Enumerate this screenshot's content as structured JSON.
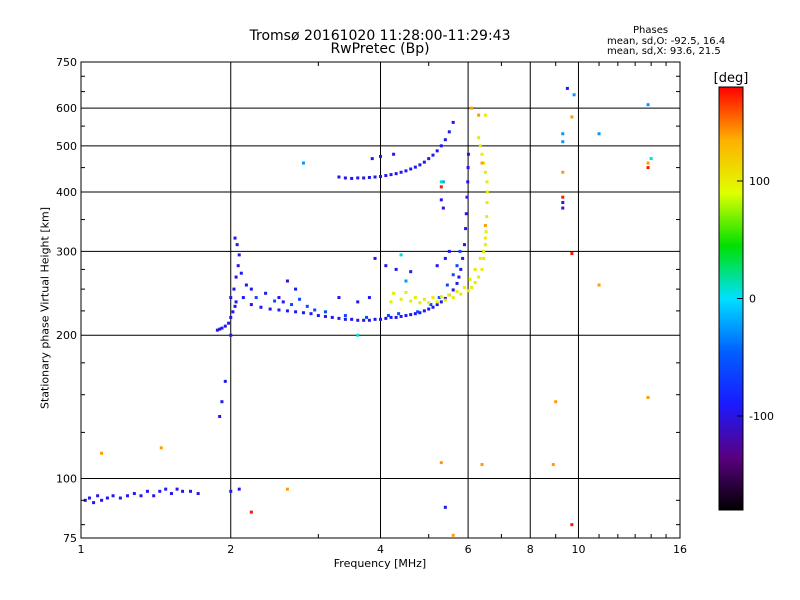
{
  "chart_data": {
    "type": "scatter",
    "title": "Tromsø 20161020 11:28:00-11:29:43",
    "subtitle": "RwPretec (Bp)",
    "xlabel": "Frequency [MHz]",
    "ylabel": "Stationary phase Virtual Height [km]",
    "x_scale": "log",
    "y_scale": "log",
    "xlim": [
      1,
      16
    ],
    "ylim": [
      75,
      750
    ],
    "x_ticks": [
      1,
      2,
      4,
      6,
      8,
      10,
      16
    ],
    "y_ticks": [
      75,
      100,
      200,
      300,
      400,
      500,
      600,
      750
    ],
    "grid": true,
    "phase_stats": {
      "heading": "Phases",
      "line_o": "mean, sd,O: -92.5, 16.4",
      "line_x": "mean, sd,X: 93.6, 21.5"
    },
    "colorbar": {
      "label": "[deg]",
      "min": -180,
      "max": 180,
      "ticks": [
        100,
        0,
        -100
      ],
      "stops": [
        "#000000",
        "#5a0080",
        "#1a1aff",
        "#0060ff",
        "#00e0ff",
        "#00e000",
        "#e0ff00",
        "#ffb000",
        "#ff0000"
      ]
    },
    "series": [
      {
        "phase": -95,
        "points": [
          [
            1.02,
            90
          ],
          [
            1.04,
            91
          ],
          [
            1.06,
            89
          ],
          [
            1.08,
            92
          ],
          [
            1.1,
            90
          ],
          [
            1.13,
            91
          ],
          [
            1.16,
            92
          ],
          [
            1.2,
            91
          ],
          [
            1.24,
            92
          ],
          [
            1.28,
            93
          ],
          [
            1.32,
            92
          ],
          [
            1.36,
            94
          ],
          [
            1.4,
            92
          ],
          [
            1.44,
            94
          ],
          [
            1.48,
            95
          ],
          [
            1.52,
            93
          ],
          [
            1.56,
            95
          ],
          [
            1.6,
            94
          ],
          [
            1.66,
            94
          ],
          [
            1.72,
            93
          ],
          [
            2.0,
            94
          ],
          [
            2.08,
            95
          ],
          [
            1.9,
            135
          ],
          [
            1.92,
            145
          ],
          [
            1.95,
            160
          ],
          [
            1.88,
            205
          ],
          [
            1.9,
            206
          ],
          [
            1.92,
            207
          ],
          [
            1.95,
            209
          ],
          [
            1.98,
            212
          ],
          [
            2.0,
            218
          ],
          [
            2.02,
            224
          ],
          [
            2.04,
            230
          ],
          [
            2.03,
            250
          ],
          [
            2.05,
            265
          ],
          [
            2.07,
            280
          ],
          [
            2.08,
            295
          ],
          [
            2.06,
            310
          ],
          [
            2.04,
            320
          ],
          [
            2.1,
            270
          ],
          [
            2.15,
            255
          ],
          [
            2.0,
            240
          ],
          [
            2.05,
            235
          ],
          [
            2.12,
            240
          ],
          [
            2.0,
            200
          ],
          [
            2.2,
            232
          ],
          [
            2.3,
            229
          ],
          [
            2.4,
            227
          ],
          [
            2.5,
            226
          ],
          [
            2.6,
            225
          ],
          [
            2.7,
            224
          ],
          [
            2.8,
            223
          ],
          [
            2.9,
            222
          ],
          [
            3.0,
            220
          ],
          [
            3.1,
            219
          ],
          [
            3.2,
            218
          ],
          [
            3.3,
            217
          ],
          [
            3.4,
            216
          ],
          [
            3.5,
            216
          ],
          [
            3.6,
            215
          ],
          [
            3.7,
            215
          ],
          [
            3.8,
            215
          ],
          [
            3.9,
            216
          ],
          [
            4.0,
            216
          ],
          [
            4.1,
            217
          ],
          [
            4.2,
            218
          ],
          [
            4.3,
            218
          ],
          [
            4.4,
            219
          ],
          [
            4.5,
            220
          ],
          [
            4.6,
            221
          ],
          [
            4.7,
            222
          ],
          [
            4.8,
            223
          ],
          [
            4.9,
            225
          ],
          [
            5.0,
            227
          ],
          [
            5.1,
            229
          ],
          [
            5.2,
            232
          ],
          [
            5.3,
            235
          ],
          [
            5.4,
            239
          ],
          [
            5.5,
            243
          ],
          [
            5.6,
            249
          ],
          [
            5.7,
            257
          ],
          [
            5.75,
            265
          ],
          [
            5.8,
            275
          ],
          [
            5.85,
            290
          ],
          [
            5.9,
            310
          ],
          [
            5.93,
            335
          ],
          [
            5.95,
            360
          ],
          [
            5.97,
            390
          ],
          [
            5.99,
            420
          ],
          [
            6.0,
            450
          ],
          [
            6.01,
            480
          ],
          [
            2.2,
            250
          ],
          [
            2.35,
            245
          ],
          [
            2.5,
            240
          ],
          [
            2.6,
            260
          ],
          [
            2.7,
            250
          ],
          [
            2.55,
            235
          ],
          [
            3.3,
            430
          ],
          [
            3.4,
            428
          ],
          [
            3.5,
            427
          ],
          [
            3.6,
            428
          ],
          [
            3.7,
            428
          ],
          [
            3.8,
            429
          ],
          [
            3.9,
            430
          ],
          [
            4.0,
            431
          ],
          [
            4.1,
            433
          ],
          [
            4.2,
            435
          ],
          [
            4.3,
            437
          ],
          [
            4.4,
            440
          ],
          [
            4.5,
            443
          ],
          [
            4.6,
            447
          ],
          [
            4.7,
            451
          ],
          [
            4.8,
            456
          ],
          [
            4.9,
            462
          ],
          [
            5.0,
            470
          ],
          [
            5.1,
            478
          ],
          [
            5.2,
            488
          ],
          [
            5.3,
            500
          ],
          [
            5.4,
            515
          ],
          [
            5.5,
            535
          ],
          [
            5.6,
            560
          ],
          [
            3.85,
            470
          ],
          [
            4.0,
            475
          ],
          [
            4.25,
            480
          ],
          [
            3.9,
            290
          ],
          [
            4.1,
            280
          ],
          [
            4.3,
            275
          ],
          [
            4.6,
            272
          ],
          [
            5.2,
            280
          ],
          [
            5.4,
            290
          ],
          [
            5.5,
            300
          ],
          [
            3.3,
            240
          ],
          [
            3.6,
            235
          ],
          [
            3.8,
            240
          ],
          [
            5.3,
            385
          ],
          [
            5.35,
            370
          ],
          [
            9.3,
            380
          ],
          [
            9.3,
            370
          ],
          [
            9.5,
            660
          ],
          [
            5.4,
            87
          ]
        ]
      },
      {
        "phase": -60,
        "points": [
          [
            2.25,
            240
          ],
          [
            2.45,
            236
          ],
          [
            2.65,
            232
          ],
          [
            2.75,
            238
          ],
          [
            2.85,
            230
          ],
          [
            2.95,
            226
          ],
          [
            3.1,
            224
          ],
          [
            3.4,
            220
          ],
          [
            3.75,
            218
          ],
          [
            4.15,
            220
          ],
          [
            4.35,
            222
          ],
          [
            4.75,
            224
          ],
          [
            5.05,
            232
          ],
          [
            5.25,
            240
          ],
          [
            5.45,
            255
          ],
          [
            5.6,
            268
          ],
          [
            5.7,
            280
          ],
          [
            5.78,
            300
          ]
        ]
      },
      {
        "phase": -25,
        "points": [
          [
            2.8,
            460
          ],
          [
            9.3,
            530
          ],
          [
            9.3,
            510
          ],
          [
            9.8,
            640
          ],
          [
            11.0,
            530
          ],
          [
            13.8,
            610
          ],
          [
            5.35,
            420
          ],
          [
            4.5,
            260
          ]
        ]
      },
      {
        "phase": 10,
        "points": [
          [
            4.4,
            295
          ],
          [
            14.0,
            470
          ],
          [
            5.3,
            420
          ],
          [
            3.6,
            200
          ]
        ]
      },
      {
        "phase": 100,
        "points": [
          [
            4.2,
            235
          ],
          [
            4.4,
            238
          ],
          [
            4.6,
            236
          ],
          [
            4.8,
            234
          ],
          [
            5.0,
            234
          ],
          [
            5.2,
            235
          ],
          [
            5.4,
            237
          ],
          [
            5.6,
            240
          ],
          [
            5.8,
            244
          ],
          [
            6.0,
            248
          ],
          [
            6.1,
            252
          ],
          [
            6.2,
            258
          ],
          [
            6.3,
            265
          ],
          [
            6.4,
            275
          ],
          [
            6.45,
            290
          ],
          [
            6.5,
            310
          ],
          [
            6.52,
            330
          ],
          [
            6.54,
            355
          ],
          [
            6.55,
            380
          ],
          [
            6.56,
            400
          ],
          [
            6.55,
            420
          ],
          [
            6.5,
            440
          ],
          [
            6.45,
            460
          ],
          [
            6.4,
            480
          ],
          [
            6.35,
            500
          ],
          [
            6.3,
            520
          ],
          [
            6.5,
            580
          ],
          [
            4.5,
            246
          ],
          [
            4.7,
            240
          ],
          [
            4.9,
            238
          ],
          [
            5.1,
            240
          ],
          [
            5.3,
            241
          ],
          [
            5.5,
            243
          ],
          [
            5.7,
            247
          ],
          [
            5.9,
            252
          ],
          [
            6.05,
            262
          ],
          [
            6.2,
            275
          ],
          [
            6.35,
            290
          ],
          [
            6.45,
            300
          ],
          [
            6.5,
            320
          ],
          [
            4.25,
            245
          ]
        ]
      },
      {
        "phase": 140,
        "points": [
          [
            1.1,
            113
          ],
          [
            1.45,
            116
          ],
          [
            2.6,
            95
          ],
          [
            6.1,
            600
          ],
          [
            6.3,
            580
          ],
          [
            9.0,
            145
          ],
          [
            9.3,
            440
          ],
          [
            9.7,
            575
          ],
          [
            11.0,
            255
          ],
          [
            13.8,
            460
          ],
          [
            13.8,
            148
          ],
          [
            5.3,
            108
          ],
          [
            6.4,
            107
          ],
          [
            8.9,
            107
          ],
          [
            5.6,
            76
          ],
          [
            6.5,
            340
          ],
          [
            6.4,
            460
          ]
        ]
      },
      {
        "phase": 175,
        "points": [
          [
            2.2,
            85
          ],
          [
            9.3,
            390
          ],
          [
            9.7,
            80
          ],
          [
            9.7,
            297
          ],
          [
            13.8,
            450
          ],
          [
            5.3,
            410
          ]
        ]
      }
    ]
  }
}
